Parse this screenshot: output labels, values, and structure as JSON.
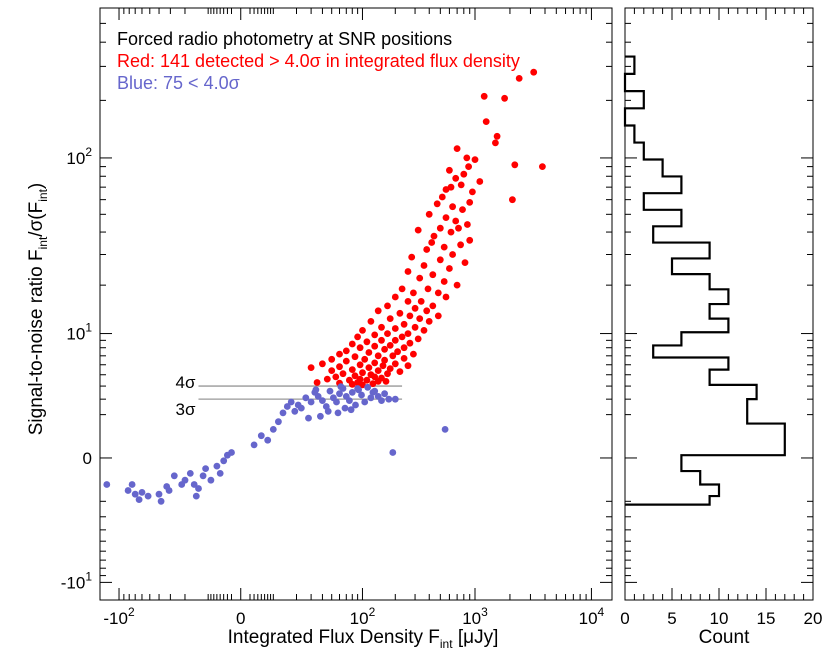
{
  "chart_data": [
    {
      "type": "scatter",
      "xlabel": "Integrated Flux Density F",
      "xlabel_sub": "int",
      "xlabel_unit": " [μJy]",
      "ylabel": "Signal-to-noise ratio F",
      "ylabel_sub1": "int",
      "ylabel_mid": "/σ(F",
      "ylabel_sub2": "int",
      "ylabel_end": ")",
      "x_scale": "symlog",
      "y_scale": "symlog",
      "xlim": [
        -150,
        15000
      ],
      "ylim": [
        -13,
        600
      ],
      "x_ticks": [
        {
          "base": "-10",
          "exp": "2",
          "value": -100
        },
        {
          "base": "0",
          "exp": "",
          "value": 0
        },
        {
          "base": "10",
          "exp": "2",
          "value": 100
        },
        {
          "base": "10",
          "exp": "3",
          "value": 1000
        },
        {
          "base": "10",
          "exp": "4",
          "value": 10000
        }
      ],
      "y_ticks": [
        {
          "base": "-10",
          "exp": "1",
          "value": -10
        },
        {
          "base": "0",
          "exp": "",
          "value": 0
        },
        {
          "base": "10",
          "exp": "1",
          "value": 10
        },
        {
          "base": "10",
          "exp": "2",
          "value": 100
        }
      ],
      "annotations": {
        "title": "Forced radio photometry at SNR positions",
        "red_label": "Red: 141 detected > 4.0σ in integrated flux density",
        "blue_label": "Blue: 75 < 4.0σ",
        "line_4sigma_label": "4σ",
        "line_3sigma_label": "3σ"
      },
      "threshold_lines": [
        {
          "label": "4σ",
          "y": 4.0,
          "x_range": [
            -13,
            230
          ],
          "color": "#999999"
        },
        {
          "label": "3σ",
          "y": 3.0,
          "x_range": [
            -13,
            230
          ],
          "color": "#999999"
        }
      ],
      "series": [
        {
          "name": "Red: 141 detected > 4.0σ in integrated flux density",
          "color": "#ff0000",
          "points": [
            [
              3200,
              280
            ],
            [
              1200,
              210
            ],
            [
              1800,
              205
            ],
            [
              1250,
              155
            ],
            [
              1550,
              130
            ],
            [
              3800,
              90
            ],
            [
              2200,
              92
            ],
            [
              850,
              100
            ],
            [
              700,
              112
            ],
            [
              880,
              90
            ],
            [
              1100,
              75
            ],
            [
              800,
              82
            ],
            [
              680,
              78
            ],
            [
              2100,
              60
            ],
            [
              620,
              70
            ],
            [
              560,
              68
            ],
            [
              760,
              72
            ],
            [
              520,
              62
            ],
            [
              900,
              58
            ],
            [
              640,
              55
            ],
            [
              470,
              57
            ],
            [
              780,
              53
            ],
            [
              560,
              48
            ],
            [
              680,
              46
            ],
            [
              400,
              50
            ],
            [
              860,
              44
            ],
            [
              720,
              42
            ],
            [
              500,
              42
            ],
            [
              320,
              41
            ],
            [
              620,
              40
            ],
            [
              440,
              38
            ],
            [
              900,
              36
            ],
            [
              750,
              34
            ],
            [
              540,
              33
            ],
            [
              380,
              32
            ],
            [
              640,
              30
            ],
            [
              280,
              29
            ],
            [
              500,
              28
            ],
            [
              820,
              27
            ],
            [
              360,
              26
            ],
            [
              600,
              25
            ],
            [
              260,
              24
            ],
            [
              430,
              23
            ],
            [
              330,
              22
            ],
            [
              540,
              21
            ],
            [
              700,
              20
            ],
            [
              230,
              19
            ],
            [
              390,
              19
            ],
            [
              290,
              18
            ],
            [
              480,
              18
            ],
            [
              560,
              17
            ],
            [
              200,
              17
            ],
            [
              340,
              16
            ],
            [
              260,
              16
            ],
            [
              430,
              15
            ],
            [
              170,
              15
            ],
            [
              300,
              14.5
            ],
            [
              380,
              14
            ],
            [
              140,
              14
            ],
            [
              220,
              13.5
            ],
            [
              480,
              13
            ],
            [
              270,
              13
            ],
            [
              330,
              12.5
            ],
            [
              180,
              12.5
            ],
            [
              120,
              12
            ],
            [
              400,
              12
            ],
            [
              240,
              11.5
            ],
            [
              150,
              11
            ],
            [
              300,
              11
            ],
            [
              200,
              10.8
            ],
            [
              100,
              10.5
            ],
            [
              360,
              10.5
            ],
            [
              170,
              10
            ],
            [
              260,
              10
            ],
            [
              130,
              9.8
            ],
            [
              230,
              9.5
            ],
            [
              90,
              9.5
            ],
            [
              320,
              9.2
            ],
            [
              150,
              9
            ],
            [
              200,
              9
            ],
            [
              110,
              8.8
            ],
            [
              270,
              8.6
            ],
            [
              80,
              8.5
            ],
            [
              180,
              8.3
            ],
            [
              130,
              8.2
            ],
            [
              240,
              8
            ],
            [
              95,
              8
            ],
            [
              160,
              7.8
            ],
            [
              70,
              7.6
            ],
            [
              210,
              7.5
            ],
            [
              115,
              7.4
            ],
            [
              290,
              7.2
            ],
            [
              60,
              7.2
            ],
            [
              140,
              7
            ],
            [
              190,
              7
            ],
            [
              85,
              6.9
            ],
            [
              240,
              6.7
            ],
            [
              105,
              6.6
            ],
            [
              50,
              6.6
            ],
            [
              160,
              6.5
            ],
            [
              70,
              6.4
            ],
            [
              130,
              6.2
            ],
            [
              200,
              6.1
            ],
            [
              40,
              6.1
            ],
            [
              95,
              6
            ],
            [
              260,
              5.9
            ],
            [
              155,
              5.9
            ],
            [
              60,
              5.8
            ],
            [
              115,
              5.7
            ],
            [
              30,
              5.7
            ],
            [
              180,
              5.6
            ],
            [
              80,
              5.5
            ],
            [
              140,
              5.4
            ],
            [
              50,
              5.4
            ],
            [
              220,
              5.3
            ],
            [
              100,
              5.2
            ],
            [
              65,
              5.1
            ],
            [
              170,
              5.1
            ],
            [
              120,
              5
            ],
            [
              85,
              4.9
            ],
            [
              130,
              4.8
            ],
            [
              55,
              4.8
            ],
            [
              150,
              4.7
            ],
            [
              95,
              4.6
            ],
            [
              45,
              4.6
            ],
            [
              110,
              4.5
            ],
            [
              75,
              4.5
            ],
            [
              165,
              4.4
            ],
            [
              140,
              4.4
            ],
            [
              90,
              4.3
            ],
            [
              35,
              4.3
            ],
            [
              60,
              4.25
            ],
            [
              125,
              4.2
            ],
            [
              80,
              4.15
            ],
            [
              100,
              4.1
            ],
            [
              2400,
              260
            ],
            [
              1500,
              120
            ],
            [
              1000,
              98
            ],
            [
              600,
              86
            ],
            [
              950,
              66
            ],
            [
              420,
              35
            ]
          ]
        },
        {
          "name": "Blue: 75 < 4.0σ",
          "color": "#6666cc",
          "points": [
            [
              -130,
              -1.1
            ],
            [
              -82,
              -1.4
            ],
            [
              -75,
              -1.1
            ],
            [
              -70,
              -1.6
            ],
            [
              -64,
              -1.9
            ],
            [
              -60,
              -1.5
            ],
            [
              -52,
              -1.7
            ],
            [
              -40,
              -1.6
            ],
            [
              -38,
              -2
            ],
            [
              -33,
              -1.2
            ],
            [
              -31,
              -1.4
            ],
            [
              -27,
              -0.7
            ],
            [
              -22,
              -1.1
            ],
            [
              -20,
              -0.9
            ],
            [
              -17,
              -0.6
            ],
            [
              -15,
              -1.1
            ],
            [
              -14,
              -1.7
            ],
            [
              -13,
              -1.3
            ],
            [
              -11,
              -0.7
            ],
            [
              -10,
              -0.4
            ],
            [
              -8,
              -0.9
            ],
            [
              -6,
              -0.3
            ],
            [
              -5,
              -0.6
            ],
            [
              -4,
              -0.1
            ],
            [
              -3,
              0.1
            ],
            [
              -2,
              0.2
            ],
            [
              3,
              0.5
            ],
            [
              5,
              0.9
            ],
            [
              7,
              0.7
            ],
            [
              9,
              1.2
            ],
            [
              11,
              1.6
            ],
            [
              13,
              2.1
            ],
            [
              15,
              2.5
            ],
            [
              17,
              2.8
            ],
            [
              19,
              2.2
            ],
            [
              21,
              2.6
            ],
            [
              23,
              2.4
            ],
            [
              26,
              3.1
            ],
            [
              30,
              2.8
            ],
            [
              33,
              3.5
            ],
            [
              36,
              3.2
            ],
            [
              40,
              2.9
            ],
            [
              44,
              2.5
            ],
            [
              48,
              3.6
            ],
            [
              52,
              3.1
            ],
            [
              56,
              2.8
            ],
            [
              60,
              3.4
            ],
            [
              65,
              3.8
            ],
            [
              70,
              3.2
            ],
            [
              75,
              2.9
            ],
            [
              80,
              3.5
            ],
            [
              86,
              2.6
            ],
            [
              92,
              3.7
            ],
            [
              98,
              3.3
            ],
            [
              105,
              2.8
            ],
            [
              112,
              3.9
            ],
            [
              120,
              3.1
            ],
            [
              130,
              3.6
            ],
            [
              140,
              3.2
            ],
            [
              150,
              2.9
            ],
            [
              160,
              3.4
            ],
            [
              175,
              3.0
            ],
            [
              190,
              0.2
            ],
            [
              550,
              1.2
            ],
            [
              28,
              1.8
            ],
            [
              38,
              1.9
            ],
            [
              46,
              2.2
            ],
            [
              58,
              2.1
            ],
            [
              68,
              2.4
            ],
            [
              78,
              2.3
            ],
            [
              34,
              3.7
            ],
            [
              62,
              3.95
            ],
            [
              90,
              3.8
            ],
            [
              125,
              3.5
            ],
            [
              200,
              3.0
            ]
          ]
        }
      ]
    },
    {
      "type": "histogram",
      "orientation": "horizontal",
      "xlabel": "Count",
      "xlim": [
        0,
        20
      ],
      "x_ticks": [
        "0",
        "5",
        "10",
        "15",
        "20"
      ],
      "x_tick_values": [
        0,
        5,
        10,
        15,
        20
      ],
      "y_scale": "symlog",
      "ylim": [
        -13,
        600
      ],
      "bins": [
        {
          "y0": -2.2,
          "y1": -1.7,
          "count": 9
        },
        {
          "y0": -1.7,
          "y1": -1.1,
          "count": 10
        },
        {
          "y0": -1.1,
          "y1": -0.5,
          "count": 8
        },
        {
          "y0": -0.5,
          "y1": 0.1,
          "count": 6
        },
        {
          "y0": 0.1,
          "y1": 1.5,
          "count": 17
        },
        {
          "y0": 1.5,
          "y1": 3.0,
          "count": 13
        },
        {
          "y0": 3.0,
          "y1": 4.1,
          "count": 14
        },
        {
          "y0": 4.1,
          "y1": 5.5,
          "count": 9
        },
        {
          "y0": 5.5,
          "y1": 6.8,
          "count": 11
        },
        {
          "y0": 6.8,
          "y1": 8.3,
          "count": 3
        },
        {
          "y0": 8.3,
          "y1": 10.2,
          "count": 6
        },
        {
          "y0": 10.2,
          "y1": 12.5,
          "count": 11
        },
        {
          "y0": 12.5,
          "y1": 15.4,
          "count": 9
        },
        {
          "y0": 15.4,
          "y1": 18.9,
          "count": 11
        },
        {
          "y0": 18.9,
          "y1": 23.2,
          "count": 9
        },
        {
          "y0": 23.2,
          "y1": 28.5,
          "count": 5
        },
        {
          "y0": 28.5,
          "y1": 35.0,
          "count": 9
        },
        {
          "y0": 35.0,
          "y1": 43.0,
          "count": 3
        },
        {
          "y0": 43.0,
          "y1": 52.9,
          "count": 6
        },
        {
          "y0": 52.9,
          "y1": 65.0,
          "count": 2
        },
        {
          "y0": 65.0,
          "y1": 79.8,
          "count": 6
        },
        {
          "y0": 79.8,
          "y1": 98.1,
          "count": 4
        },
        {
          "y0": 98.1,
          "y1": 120.5,
          "count": 2
        },
        {
          "y0": 120.5,
          "y1": 148.0,
          "count": 1
        },
        {
          "y0": 148.0,
          "y1": 181.9,
          "count": 0
        },
        {
          "y0": 181.9,
          "y1": 223.4,
          "count": 2
        },
        {
          "y0": 223.4,
          "y1": 274.5,
          "count": 0
        },
        {
          "y0": 274.5,
          "y1": 337.2,
          "count": 1
        }
      ]
    }
  ]
}
